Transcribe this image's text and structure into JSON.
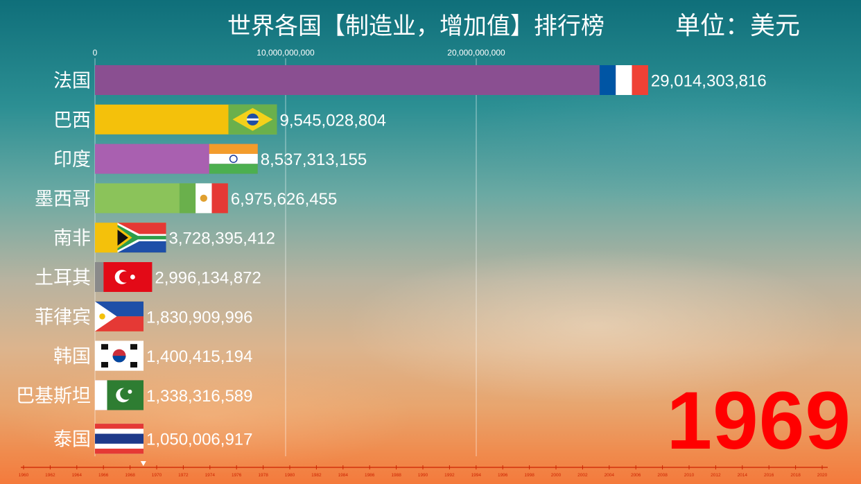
{
  "title": "世界各国【制造业，增加值】排行榜",
  "unit_label": "单位：美元",
  "year": "1969",
  "chart_data": {
    "type": "bar",
    "orientation": "horizontal",
    "title": "世界各国【制造业，增加值】排行榜",
    "xlim": [
      0,
      30000000000
    ],
    "x_ticks": [
      {
        "value": 0,
        "label": "0"
      },
      {
        "value": 10000000000,
        "label": "10,000,000,000"
      },
      {
        "value": 20000000000,
        "label": "20,000,000,000"
      }
    ],
    "grid": true,
    "categories": [
      "法国",
      "巴西",
      "印度",
      "墨西哥",
      "南非",
      "土耳其",
      "菲律宾",
      "韩国",
      "巴基斯坦",
      "泰国"
    ],
    "values": [
      29014303816,
      9545028804,
      8537313155,
      6975626455,
      3728395412,
      2996134872,
      1830909996,
      1400415194,
      1338316589,
      1050006917
    ],
    "value_labels": [
      "29,014,303,816",
      "9,545,028,804",
      "8,537,313,155",
      "6,975,626,455",
      "3,728,395,412",
      "2,996,134,872",
      "1,830,909,996",
      "1,400,415,194",
      "1,338,316,589",
      "1,050,006,917"
    ],
    "colors": [
      "#8a4f91",
      "#f4c10b",
      "#a960b0",
      "#8bc35a",
      "#f4c10b",
      "#8a8a8a",
      "#e99d0c",
      "#ffffff",
      "#a95aa8",
      "#a960b0"
    ],
    "flags": [
      "france",
      "brazil",
      "india",
      "mexico",
      "south-africa",
      "turkey",
      "philippines",
      "south-korea",
      "pakistan",
      "thailand"
    ],
    "timeline": {
      "current": 1969,
      "labels": [
        "1960",
        "1962",
        "1964",
        "1966",
        "1968",
        "1970",
        "1972",
        "1974",
        "1976",
        "1978",
        "1980",
        "1982",
        "1984",
        "1986",
        "1988",
        "1990",
        "1992",
        "1994",
        "1996",
        "1998",
        "2000",
        "2002",
        "2004",
        "2006",
        "2008",
        "2010",
        "2012",
        "2014",
        "2016",
        "2018",
        "2020"
      ]
    }
  }
}
